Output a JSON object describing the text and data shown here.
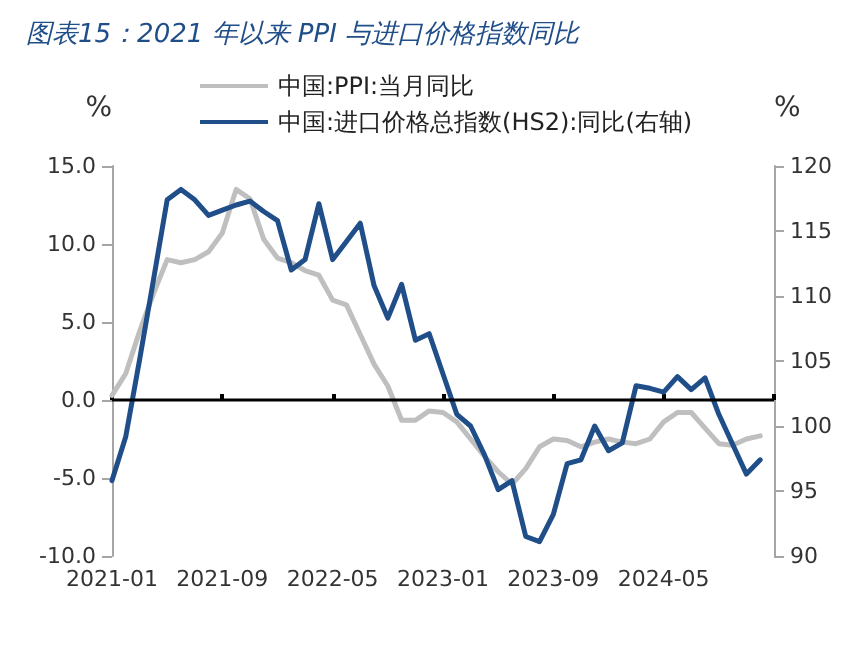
{
  "chart_data": {
    "type": "line",
    "title": "图表15：2021 年以来 PPI 与进口价格指数同比",
    "categories": [
      "2021-01",
      null,
      null,
      null,
      null,
      null,
      null,
      null,
      "2021-09",
      null,
      null,
      null,
      null,
      null,
      null,
      null,
      "2022-05",
      null,
      null,
      null,
      null,
      null,
      null,
      null,
      "2023-01",
      null,
      null,
      null,
      null,
      null,
      null,
      null,
      "2023-09",
      null,
      null,
      null,
      null,
      null,
      null,
      null,
      "2024-05",
      null,
      null,
      null,
      null,
      null,
      null,
      null,
      null
    ],
    "series": [
      {
        "name": "中国:PPI:当月同比",
        "color": "#bfbfbf",
        "values": [
          0.3,
          1.7,
          4.4,
          6.8,
          9.0,
          8.8,
          9.0,
          9.5,
          10.7,
          13.5,
          12.9,
          10.3,
          9.1,
          8.8,
          8.3,
          8.0,
          6.4,
          6.1,
          4.2,
          2.3,
          0.9,
          -1.3,
          -1.3,
          -0.7,
          -0.8,
          -1.4,
          -2.5,
          -3.6,
          -4.6,
          -5.4,
          -4.4,
          -3.0,
          -2.5,
          -2.6,
          -3.0,
          -2.7,
          -2.5,
          -2.7,
          -2.8,
          -2.5,
          -1.4,
          -0.8,
          -0.8,
          -1.8,
          -2.8,
          -2.9,
          -2.5,
          -2.3,
          null
        ]
      },
      {
        "name": "中国:进口价格总指数(HS2):同比(右轴)",
        "color": "#1f4e89",
        "axis": "y2",
        "values": [
          95.8,
          99.2,
          105.1,
          111.2,
          117.4,
          118.2,
          117.4,
          116.2,
          116.6,
          117.0,
          117.3,
          116.5,
          115.8,
          112.0,
          112.8,
          117.1,
          112.8,
          114.2,
          115.6,
          110.8,
          108.3,
          110.9,
          106.6,
          107.1,
          104.0,
          100.9,
          100.0,
          97.8,
          95.1,
          95.8,
          91.5,
          91.1,
          93.2,
          97.1,
          97.4,
          100.0,
          98.1,
          98.7,
          103.1,
          102.9,
          102.6,
          103.8,
          102.8,
          103.7,
          100.9,
          98.6,
          96.3,
          97.4,
          null
        ]
      }
    ],
    "ylabel": "%",
    "y2label": "%",
    "ylim": [
      -10,
      15
    ],
    "yticks": [
      {
        "value": -10,
        "label": "-10.0"
      },
      {
        "value": -5,
        "label": "-5.0"
      },
      {
        "value": 0,
        "label": "0.0"
      },
      {
        "value": 5,
        "label": "5.0"
      },
      {
        "value": 10,
        "label": "10.0"
      },
      {
        "value": 15,
        "label": "15.0"
      }
    ],
    "y2lim": [
      90,
      120
    ],
    "y2ticks": [
      90,
      95,
      100,
      105,
      110,
      115,
      120
    ],
    "ref_lines": [
      {
        "axis": "y",
        "value": 0,
        "color": "#000000",
        "line_style": "solid"
      }
    ],
    "legend": "top",
    "grid": false,
    "marker": "none",
    "line_style": "solid"
  }
}
